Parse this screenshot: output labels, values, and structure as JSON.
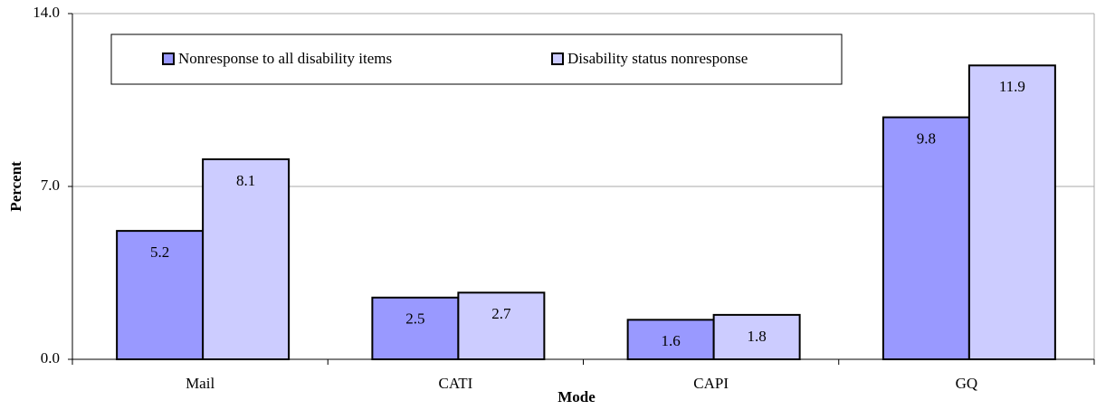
{
  "chart_data": {
    "type": "bar",
    "xlabel": "Mode",
    "ylabel": "Percent",
    "categories": [
      "Mail",
      "CATI",
      "CAPI",
      "GQ"
    ],
    "series": [
      {
        "name": "Nonresponse to all disability items",
        "color": "#9999ff",
        "values": [
          5.2,
          2.5,
          1.6,
          9.8
        ]
      },
      {
        "name": "Disability status nonresponse",
        "color": "#ccccff",
        "values": [
          8.1,
          2.7,
          1.8,
          11.9
        ]
      }
    ],
    "ylim": [
      0,
      14
    ],
    "yticks": [
      {
        "value": 0,
        "label": "0.0"
      },
      {
        "value": 7,
        "label": "7.0"
      },
      {
        "value": 14,
        "label": "14.0"
      }
    ],
    "grid": true,
    "legend": "top"
  }
}
